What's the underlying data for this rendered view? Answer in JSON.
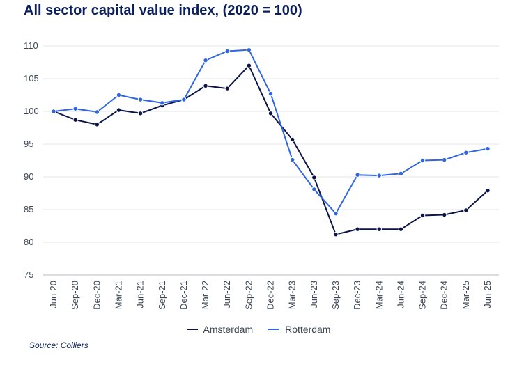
{
  "chart_data": {
    "type": "line",
    "title": "All sector capital value index, (2020 = 100)",
    "categories": [
      "Jun-20",
      "Sep-20",
      "Dec-20",
      "Mar-21",
      "Jun-21",
      "Sep-21",
      "Dec-21",
      "Mar-22",
      "Jun-22",
      "Sep-22",
      "Dec-22",
      "Mar-23",
      "Jun-23",
      "Sep-23",
      "Dec-23",
      "Mar-24",
      "Jun-24",
      "Sep-24",
      "Dec-24",
      "Mar-25",
      "Jun-25"
    ],
    "series": [
      {
        "name": "Amsterdam",
        "color": "#0b1445",
        "values": [
          100,
          98.7,
          98.0,
          100.2,
          99.7,
          100.9,
          101.8,
          103.9,
          103.5,
          107.0,
          99.7,
          95.7,
          89.9,
          81.2,
          82.0,
          82.0,
          82.0,
          84.1,
          84.2,
          84.9,
          87.9
        ]
      },
      {
        "name": "Rotterdam",
        "color": "#2f66e0",
        "values": [
          100,
          100.4,
          99.9,
          102.5,
          101.8,
          101.3,
          101.8,
          107.8,
          109.2,
          109.4,
          102.7,
          92.6,
          88.1,
          84.4,
          90.3,
          90.2,
          90.5,
          92.5,
          92.6,
          93.7,
          94.3
        ]
      }
    ],
    "yticks": [
      75,
      80,
      85,
      90,
      95,
      100,
      105,
      110
    ],
    "ylim": [
      75,
      110
    ],
    "grid": true,
    "legend_position": "bottom-center",
    "source": "Source: Colliers"
  }
}
